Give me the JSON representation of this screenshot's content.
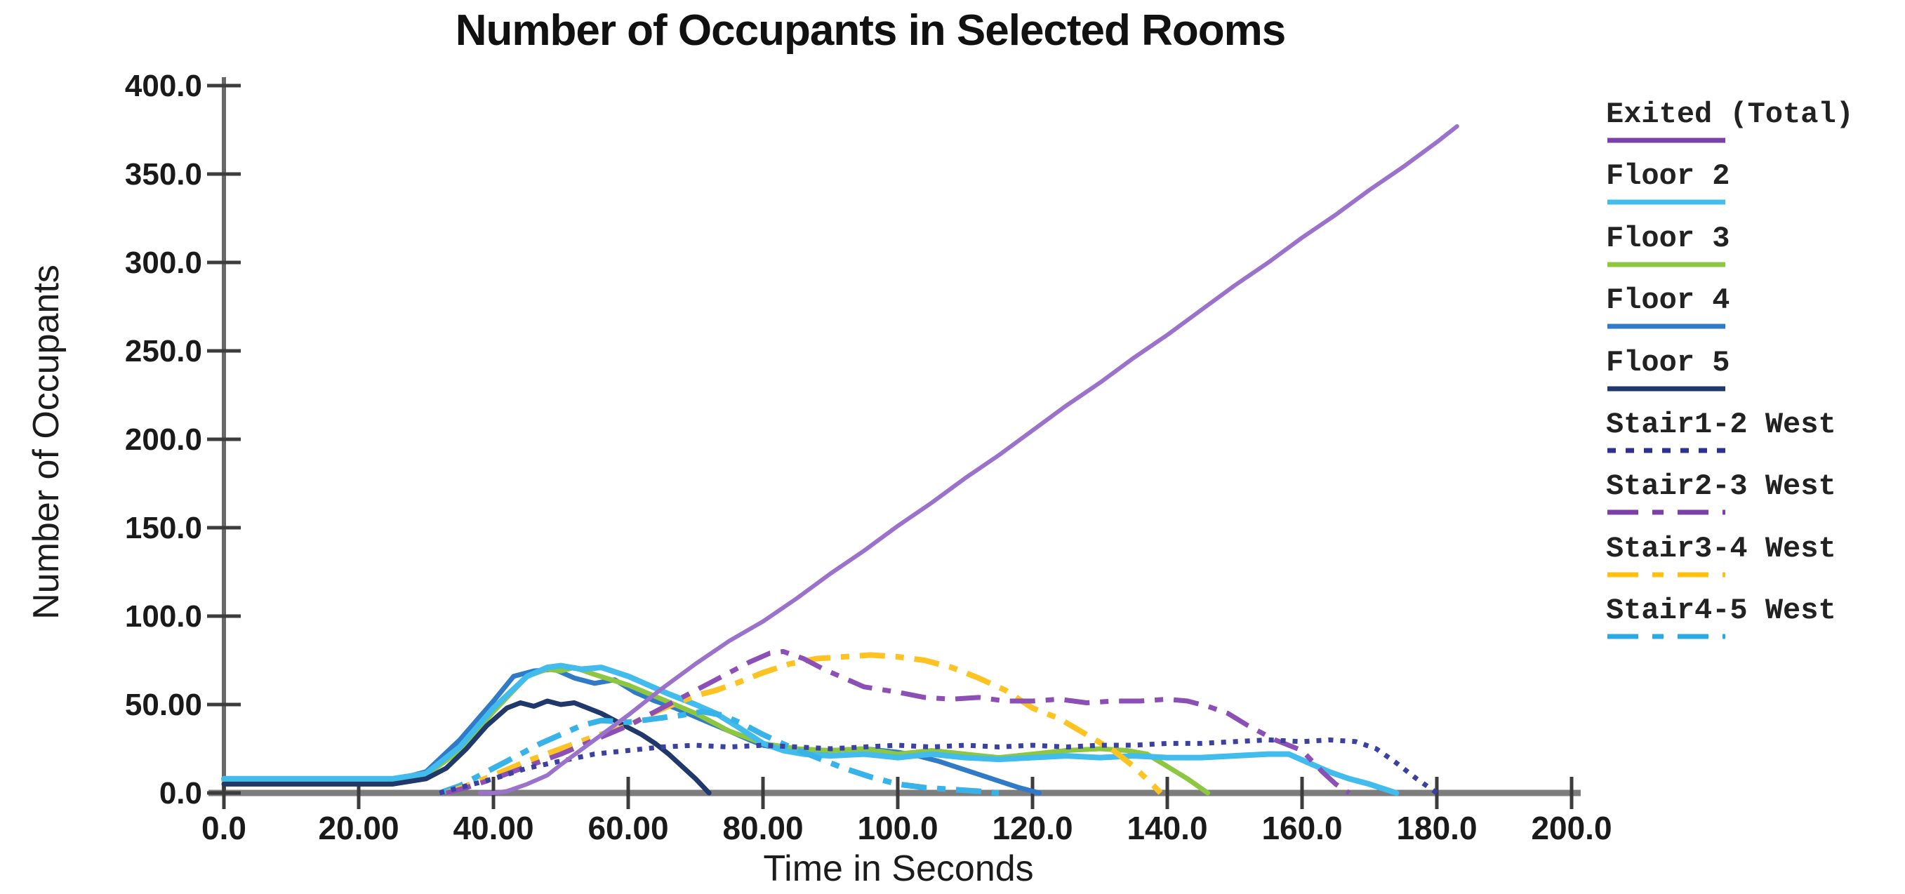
{
  "chart_data": {
    "type": "line",
    "title": "Number of Occupants in Selected Rooms",
    "xlabel": "Time in Seconds",
    "ylabel": "Number of Occupants",
    "xlim": [
      0,
      200
    ],
    "ylim": [
      0,
      400
    ],
    "grid": false,
    "legend_position": "right",
    "x_tick_values": [
      0,
      20,
      40,
      60,
      80,
      100,
      120,
      140,
      160,
      180,
      200
    ],
    "x_tick_labels": [
      "0.0",
      "20.00",
      "40.00",
      "60.00",
      "80.00",
      "100.0",
      "120.0",
      "140.0",
      "160.0",
      "180.0",
      "200.0"
    ],
    "y_tick_values": [
      0,
      50,
      100,
      150,
      200,
      250,
      300,
      350,
      400
    ],
    "y_tick_labels": [
      "0.0",
      "50.00",
      "100.0",
      "150.0",
      "200.0",
      "250.0",
      "300.0",
      "350.0",
      "400.0"
    ],
    "axis_colors": {
      "x_axis": "#7d7d7d",
      "y_axis": "#686868",
      "ticks": "#3c3c3c",
      "text": "#1a1a1a"
    },
    "series": [
      {
        "name": "Exited (Total)",
        "style": "solid",
        "width": 6,
        "color": "#9B72CB",
        "legend_color": "#7B3FA8",
        "points": [
          [
            38,
            0
          ],
          [
            40,
            0
          ],
          [
            42,
            1
          ],
          [
            45,
            5
          ],
          [
            48,
            10
          ],
          [
            50,
            16
          ],
          [
            55,
            30
          ],
          [
            60,
            44
          ],
          [
            65,
            59
          ],
          [
            70,
            73
          ],
          [
            75,
            86
          ],
          [
            80,
            97
          ],
          [
            85,
            110
          ],
          [
            90,
            124
          ],
          [
            95,
            137
          ],
          [
            100,
            151
          ],
          [
            105,
            164
          ],
          [
            110,
            178
          ],
          [
            115,
            191
          ],
          [
            120,
            205
          ],
          [
            125,
            219
          ],
          [
            130,
            232
          ],
          [
            135,
            246
          ],
          [
            140,
            259
          ],
          [
            145,
            273
          ],
          [
            150,
            287
          ],
          [
            155,
            300
          ],
          [
            160,
            314
          ],
          [
            165,
            327
          ],
          [
            170,
            341
          ],
          [
            175,
            354
          ],
          [
            180,
            368
          ],
          [
            183,
            377
          ]
        ]
      },
      {
        "name": "Floor 2",
        "style": "solid",
        "width": 8,
        "color": "#41BCEC",
        "legend_color": "#41BCEC",
        "points": [
          [
            0,
            8
          ],
          [
            25,
            8
          ],
          [
            30,
            11
          ],
          [
            35,
            26
          ],
          [
            40,
            48
          ],
          [
            45,
            66
          ],
          [
            48,
            71
          ],
          [
            50,
            72
          ],
          [
            53,
            70
          ],
          [
            56,
            71
          ],
          [
            60,
            66
          ],
          [
            63,
            61
          ],
          [
            66,
            56
          ],
          [
            70,
            50
          ],
          [
            73,
            45
          ],
          [
            76,
            38
          ],
          [
            80,
            28
          ],
          [
            83,
            24
          ],
          [
            86,
            22
          ],
          [
            90,
            21
          ],
          [
            95,
            22
          ],
          [
            100,
            20
          ],
          [
            105,
            22
          ],
          [
            110,
            20
          ],
          [
            115,
            19
          ],
          [
            120,
            20
          ],
          [
            125,
            21
          ],
          [
            130,
            20
          ],
          [
            135,
            21
          ],
          [
            140,
            20
          ],
          [
            145,
            20
          ],
          [
            150,
            21
          ],
          [
            155,
            22
          ],
          [
            158,
            22
          ],
          [
            161,
            17
          ],
          [
            164,
            12
          ],
          [
            167,
            8
          ],
          [
            170,
            5
          ],
          [
            174,
            0
          ]
        ]
      },
      {
        "name": "Floor 3",
        "style": "solid",
        "width": 7,
        "color": "#8DC63F",
        "legend_color": "#8DC63F",
        "points": [
          [
            0,
            7
          ],
          [
            25,
            7
          ],
          [
            30,
            10
          ],
          [
            35,
            24
          ],
          [
            40,
            46
          ],
          [
            45,
            66
          ],
          [
            48,
            70
          ],
          [
            50,
            69
          ],
          [
            52,
            71
          ],
          [
            55,
            67
          ],
          [
            60,
            61
          ],
          [
            65,
            53
          ],
          [
            70,
            45
          ],
          [
            75,
            35
          ],
          [
            80,
            28
          ],
          [
            85,
            25
          ],
          [
            90,
            24
          ],
          [
            95,
            25
          ],
          [
            100,
            22
          ],
          [
            105,
            24
          ],
          [
            110,
            22
          ],
          [
            115,
            20
          ],
          [
            120,
            22
          ],
          [
            125,
            24
          ],
          [
            130,
            25
          ],
          [
            134,
            24
          ],
          [
            137,
            22
          ],
          [
            140,
            15
          ],
          [
            143,
            8
          ],
          [
            146,
            0
          ]
        ]
      },
      {
        "name": "Floor 4",
        "style": "solid",
        "width": 7,
        "color": "#2F7BC8",
        "legend_color": "#2F7BC8",
        "points": [
          [
            0,
            7
          ],
          [
            25,
            7
          ],
          [
            30,
            12
          ],
          [
            35,
            30
          ],
          [
            40,
            52
          ],
          [
            43,
            66
          ],
          [
            46,
            69
          ],
          [
            49,
            70
          ],
          [
            52,
            65
          ],
          [
            55,
            62
          ],
          [
            58,
            64
          ],
          [
            61,
            57
          ],
          [
            64,
            52
          ],
          [
            67,
            48
          ],
          [
            70,
            43
          ],
          [
            75,
            35
          ],
          [
            78,
            30
          ],
          [
            80,
            27
          ],
          [
            83,
            25
          ],
          [
            86,
            24
          ],
          [
            90,
            24
          ],
          [
            95,
            25
          ],
          [
            100,
            23
          ],
          [
            103,
            21
          ],
          [
            106,
            18
          ],
          [
            110,
            13
          ],
          [
            114,
            8
          ],
          [
            118,
            3
          ],
          [
            121,
            0
          ]
        ]
      },
      {
        "name": "Floor 5",
        "style": "solid",
        "width": 7,
        "color": "#20386B",
        "legend_color": "#20386B",
        "points": [
          [
            0,
            5
          ],
          [
            25,
            5
          ],
          [
            30,
            8
          ],
          [
            33,
            14
          ],
          [
            36,
            25
          ],
          [
            39,
            38
          ],
          [
            42,
            48
          ],
          [
            44,
            51
          ],
          [
            46,
            49
          ],
          [
            48,
            52
          ],
          [
            50,
            50
          ],
          [
            52,
            51
          ],
          [
            54,
            48
          ],
          [
            56,
            45
          ],
          [
            58,
            41
          ],
          [
            60,
            37
          ],
          [
            62,
            33
          ],
          [
            64,
            28
          ],
          [
            66,
            22
          ],
          [
            68,
            15
          ],
          [
            70,
            8
          ],
          [
            72,
            0
          ]
        ]
      },
      {
        "name": "Stair1-2 West",
        "style": "dotted",
        "width": 7,
        "color": "#3A41A0",
        "legend_color": "#2E3192",
        "points": [
          [
            32,
            0
          ],
          [
            35,
            3
          ],
          [
            40,
            8
          ],
          [
            45,
            14
          ],
          [
            50,
            18
          ],
          [
            55,
            22
          ],
          [
            60,
            24
          ],
          [
            65,
            26
          ],
          [
            70,
            27
          ],
          [
            75,
            26
          ],
          [
            80,
            27
          ],
          [
            85,
            26
          ],
          [
            90,
            25
          ],
          [
            95,
            26
          ],
          [
            100,
            27
          ],
          [
            105,
            26
          ],
          [
            110,
            27
          ],
          [
            115,
            26
          ],
          [
            120,
            27
          ],
          [
            125,
            26
          ],
          [
            130,
            27
          ],
          [
            135,
            27
          ],
          [
            140,
            28
          ],
          [
            145,
            28
          ],
          [
            150,
            29
          ],
          [
            155,
            30
          ],
          [
            160,
            29
          ],
          [
            164,
            30
          ],
          [
            168,
            29
          ],
          [
            171,
            25
          ],
          [
            174,
            17
          ],
          [
            177,
            8
          ],
          [
            180,
            0
          ]
        ]
      },
      {
        "name": "Stair2-3 West",
        "style": "dashdot",
        "width": 7,
        "color": "#8B4FB5",
        "legend_color": "#7B3FA8",
        "points": [
          [
            33,
            0
          ],
          [
            36,
            3
          ],
          [
            40,
            8
          ],
          [
            45,
            15
          ],
          [
            50,
            22
          ],
          [
            55,
            30
          ],
          [
            60,
            38
          ],
          [
            65,
            48
          ],
          [
            70,
            58
          ],
          [
            75,
            68
          ],
          [
            78,
            74
          ],
          [
            81,
            79
          ],
          [
            83,
            80
          ],
          [
            86,
            76
          ],
          [
            89,
            70
          ],
          [
            92,
            65
          ],
          [
            95,
            60
          ],
          [
            100,
            57
          ],
          [
            104,
            54
          ],
          [
            108,
            53
          ],
          [
            112,
            54
          ],
          [
            116,
            52
          ],
          [
            120,
            52
          ],
          [
            124,
            53
          ],
          [
            128,
            51
          ],
          [
            132,
            52
          ],
          [
            136,
            52
          ],
          [
            140,
            53
          ],
          [
            143,
            52
          ],
          [
            146,
            49
          ],
          [
            149,
            45
          ],
          [
            152,
            38
          ],
          [
            156,
            30
          ],
          [
            160,
            24
          ],
          [
            163,
            12
          ],
          [
            165,
            5
          ],
          [
            167,
            0
          ]
        ]
      },
      {
        "name": "Stair3-4 West",
        "style": "dashdot",
        "width": 8,
        "color": "#FDC323",
        "legend_color": "#FFC010",
        "points": [
          [
            33,
            0
          ],
          [
            36,
            4
          ],
          [
            40,
            10
          ],
          [
            45,
            18
          ],
          [
            50,
            25
          ],
          [
            55,
            32
          ],
          [
            60,
            38
          ],
          [
            63,
            44
          ],
          [
            66,
            49
          ],
          [
            70,
            55
          ],
          [
            73,
            58
          ],
          [
            76,
            62
          ],
          [
            80,
            68
          ],
          [
            84,
            73
          ],
          [
            88,
            76
          ],
          [
            92,
            77
          ],
          [
            96,
            78
          ],
          [
            100,
            77
          ],
          [
            104,
            75
          ],
          [
            108,
            71
          ],
          [
            112,
            65
          ],
          [
            116,
            58
          ],
          [
            120,
            48
          ],
          [
            124,
            42
          ],
          [
            128,
            33
          ],
          [
            132,
            24
          ],
          [
            135,
            15
          ],
          [
            138,
            4
          ],
          [
            139,
            0
          ]
        ]
      },
      {
        "name": "Stair4-5 West",
        "style": "dashdot",
        "width": 8,
        "color": "#38B3EA",
        "legend_color": "#29ABE2",
        "points": [
          [
            32,
            0
          ],
          [
            35,
            4
          ],
          [
            38,
            10
          ],
          [
            41,
            16
          ],
          [
            44,
            22
          ],
          [
            47,
            28
          ],
          [
            50,
            33
          ],
          [
            53,
            38
          ],
          [
            56,
            41
          ],
          [
            60,
            40
          ],
          [
            64,
            42
          ],
          [
            68,
            44
          ],
          [
            71,
            46
          ],
          [
            74,
            44
          ],
          [
            77,
            39
          ],
          [
            80,
            33
          ],
          [
            84,
            26
          ],
          [
            88,
            20
          ],
          [
            92,
            14
          ],
          [
            96,
            9
          ],
          [
            100,
            5
          ],
          [
            104,
            3
          ],
          [
            108,
            2
          ],
          [
            112,
            1
          ],
          [
            115,
            0
          ]
        ]
      }
    ]
  }
}
